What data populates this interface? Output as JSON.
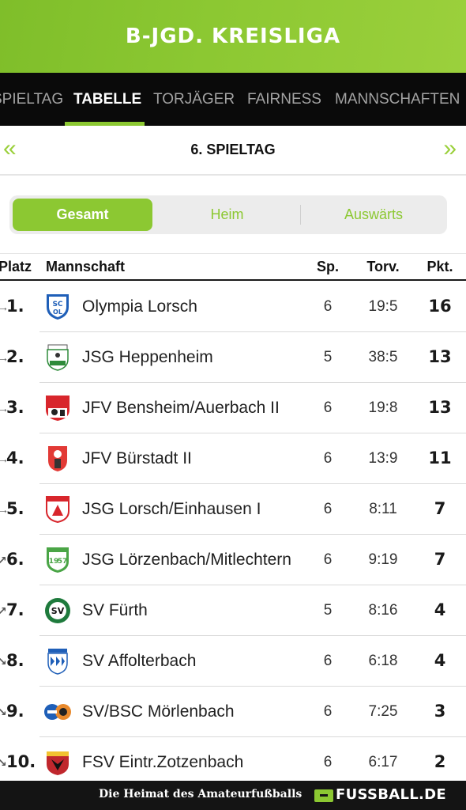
{
  "header": {
    "title": "B-JGD. KREISLIGA"
  },
  "tabs": [
    {
      "label": "SPIELTAG"
    },
    {
      "label": "TABELLE",
      "active": true
    },
    {
      "label": "TORJÄGER"
    },
    {
      "label": "FAIRNESS"
    },
    {
      "label": "MANNSCHAFTEN"
    }
  ],
  "matchday": {
    "prev_icon": "«",
    "label": "6. SPIELTAG",
    "next_icon": "»"
  },
  "filter": {
    "options": [
      "Gesamt",
      "Heim",
      "Auswärts"
    ],
    "selected": "Gesamt"
  },
  "table": {
    "headers": {
      "platz": "Platz",
      "team": "Mannschaft",
      "sp": "Sp.",
      "tore": "Torv.",
      "pkt": "Pkt."
    },
    "rows": [
      {
        "pos": "1.",
        "trend": "right",
        "team": "Olympia Lorsch",
        "sp": "6",
        "tore": "19:5",
        "pkt": "16",
        "crest": "olympia-lorsch-crest"
      },
      {
        "pos": "2.",
        "trend": "right",
        "team": "JSG Heppenheim",
        "sp": "5",
        "tore": "38:5",
        "pkt": "13",
        "crest": "jsg-heppenheim-crest"
      },
      {
        "pos": "3.",
        "trend": "right",
        "team": "JFV Bensheim/Auerbach II",
        "sp": "6",
        "tore": "19:8",
        "pkt": "13",
        "crest": "jfv-bensheim-crest"
      },
      {
        "pos": "4.",
        "trend": "right",
        "team": "JFV Bürstadt II",
        "sp": "6",
        "tore": "13:9",
        "pkt": "11",
        "crest": "jfv-buerstadt-crest"
      },
      {
        "pos": "5.",
        "trend": "right",
        "team": "JSG Lorsch/Einhausen I",
        "sp": "6",
        "tore": "8:11",
        "pkt": "7",
        "crest": "jsg-lorsch-einhausen-crest"
      },
      {
        "pos": "6.",
        "trend": "up",
        "team": "JSG Lörzenbach/Mitlechtern",
        "sp": "6",
        "tore": "9:19",
        "pkt": "7",
        "crest": "jsg-loerzenbach-crest"
      },
      {
        "pos": "7.",
        "trend": "up",
        "team": "SV Fürth",
        "sp": "5",
        "tore": "8:16",
        "pkt": "4",
        "crest": "sv-fuerth-crest"
      },
      {
        "pos": "8.",
        "trend": "down",
        "team": "SV Affolterbach",
        "sp": "6",
        "tore": "6:18",
        "pkt": "4",
        "crest": "sv-affolterbach-crest"
      },
      {
        "pos": "9.",
        "trend": "down",
        "team": "SV/BSC Mörlenbach",
        "sp": "6",
        "tore": "7:25",
        "pkt": "3",
        "crest": "sv-bsc-moerlenbach-crest"
      },
      {
        "pos": "10.",
        "trend": "down",
        "team": "FSV Eintr.Zotzenbach",
        "sp": "6",
        "tore": "6:17",
        "pkt": "2",
        "crest": "fsv-zotzenbach-crest"
      }
    ]
  },
  "footer": {
    "tagline": "Die Heimat des Amateurfußballs",
    "logo": "FUSSBALL.DE"
  },
  "colors": {
    "accent": "#8cc832",
    "tabbar": "#0a0a0a",
    "footer": "#141414"
  }
}
